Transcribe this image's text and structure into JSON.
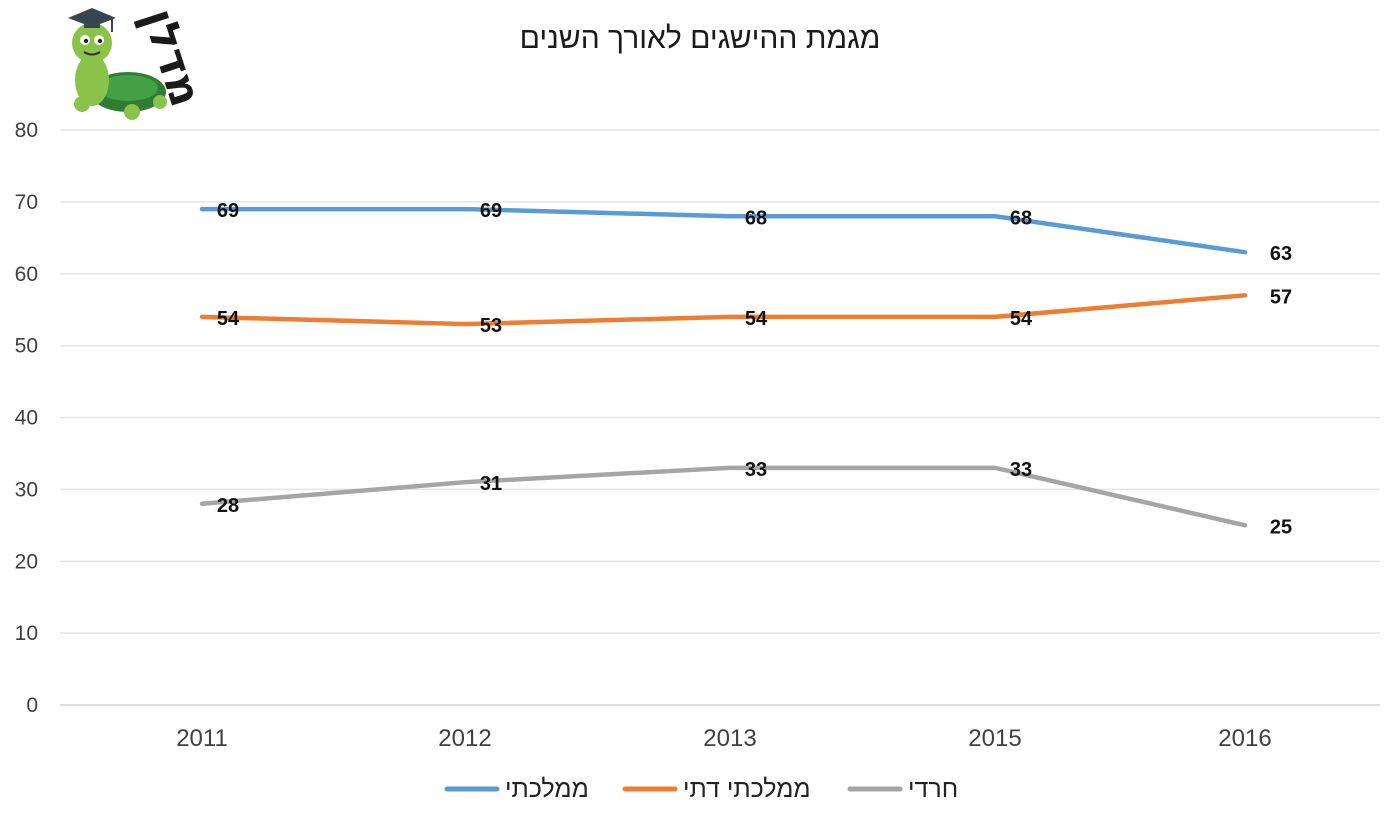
{
  "logo": {
    "text": "מדלן"
  },
  "chart_data": {
    "type": "line",
    "title": "מגמת ההישגים לאורך השנים",
    "categories": [
      "2011",
      "2012",
      "2013",
      "2015",
      "2016"
    ],
    "series": [
      {
        "name": "ממלכתי",
        "color": "#5b9bd5",
        "values": [
          69,
          69,
          68,
          68,
          63
        ]
      },
      {
        "name": "ממלכתי דתי",
        "color": "#ed7d31",
        "values": [
          54,
          53,
          54,
          54,
          57
        ]
      },
      {
        "name": "חרדי",
        "color": "#a5a5a5",
        "values": [
          28,
          31,
          33,
          33,
          25
        ]
      }
    ],
    "ylim": [
      0,
      80
    ],
    "yticks": [
      0,
      10,
      20,
      30,
      40,
      50,
      60,
      70,
      80
    ],
    "grid": true,
    "legend": "bottom",
    "data_labels": true
  }
}
